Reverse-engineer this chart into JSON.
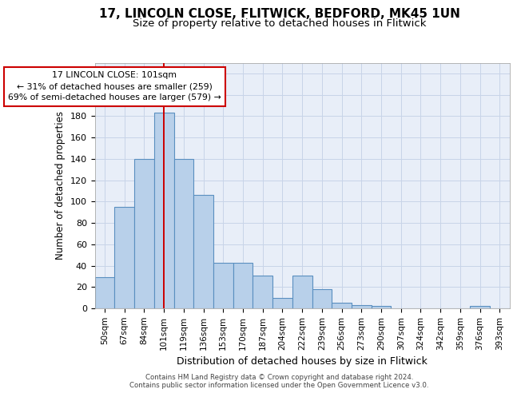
{
  "title1": "17, LINCOLN CLOSE, FLITWICK, BEDFORD, MK45 1UN",
  "title2": "Size of property relative to detached houses in Flitwick",
  "xlabel": "Distribution of detached houses by size in Flitwick",
  "ylabel": "Number of detached properties",
  "footer1": "Contains HM Land Registry data © Crown copyright and database right 2024.",
  "footer2": "Contains public sector information licensed under the Open Government Licence v3.0.",
  "categories": [
    "50sqm",
    "67sqm",
    "84sqm",
    "101sqm",
    "119sqm",
    "136sqm",
    "153sqm",
    "170sqm",
    "187sqm",
    "204sqm",
    "222sqm",
    "239sqm",
    "256sqm",
    "273sqm",
    "290sqm",
    "307sqm",
    "324sqm",
    "342sqm",
    "359sqm",
    "376sqm",
    "393sqm"
  ],
  "values": [
    29,
    95,
    140,
    183,
    140,
    106,
    43,
    43,
    31,
    10,
    31,
    18,
    5,
    3,
    2,
    0,
    0,
    0,
    0,
    2,
    0
  ],
  "bar_color": "#b8d0ea",
  "bar_edge_color": "#5a8fc0",
  "highlight_bar_index": 3,
  "highlight_line_color": "#cc0000",
  "annotation_line1": "17 LINCOLN CLOSE: 101sqm",
  "annotation_line2": "← 31% of detached houses are smaller (259)",
  "annotation_line3": "69% of semi-detached houses are larger (579) →",
  "annotation_box_color": "#ffffff",
  "annotation_box_edge_color": "#cc0000",
  "ylim": [
    0,
    230
  ],
  "yticks": [
    0,
    20,
    40,
    60,
    80,
    100,
    120,
    140,
    160,
    180,
    200,
    220
  ],
  "grid_color": "#c8d4e8",
  "background_color": "#e8eef8",
  "fig_background": "#ffffff",
  "title1_fontsize": 11,
  "title2_fontsize": 9.5
}
